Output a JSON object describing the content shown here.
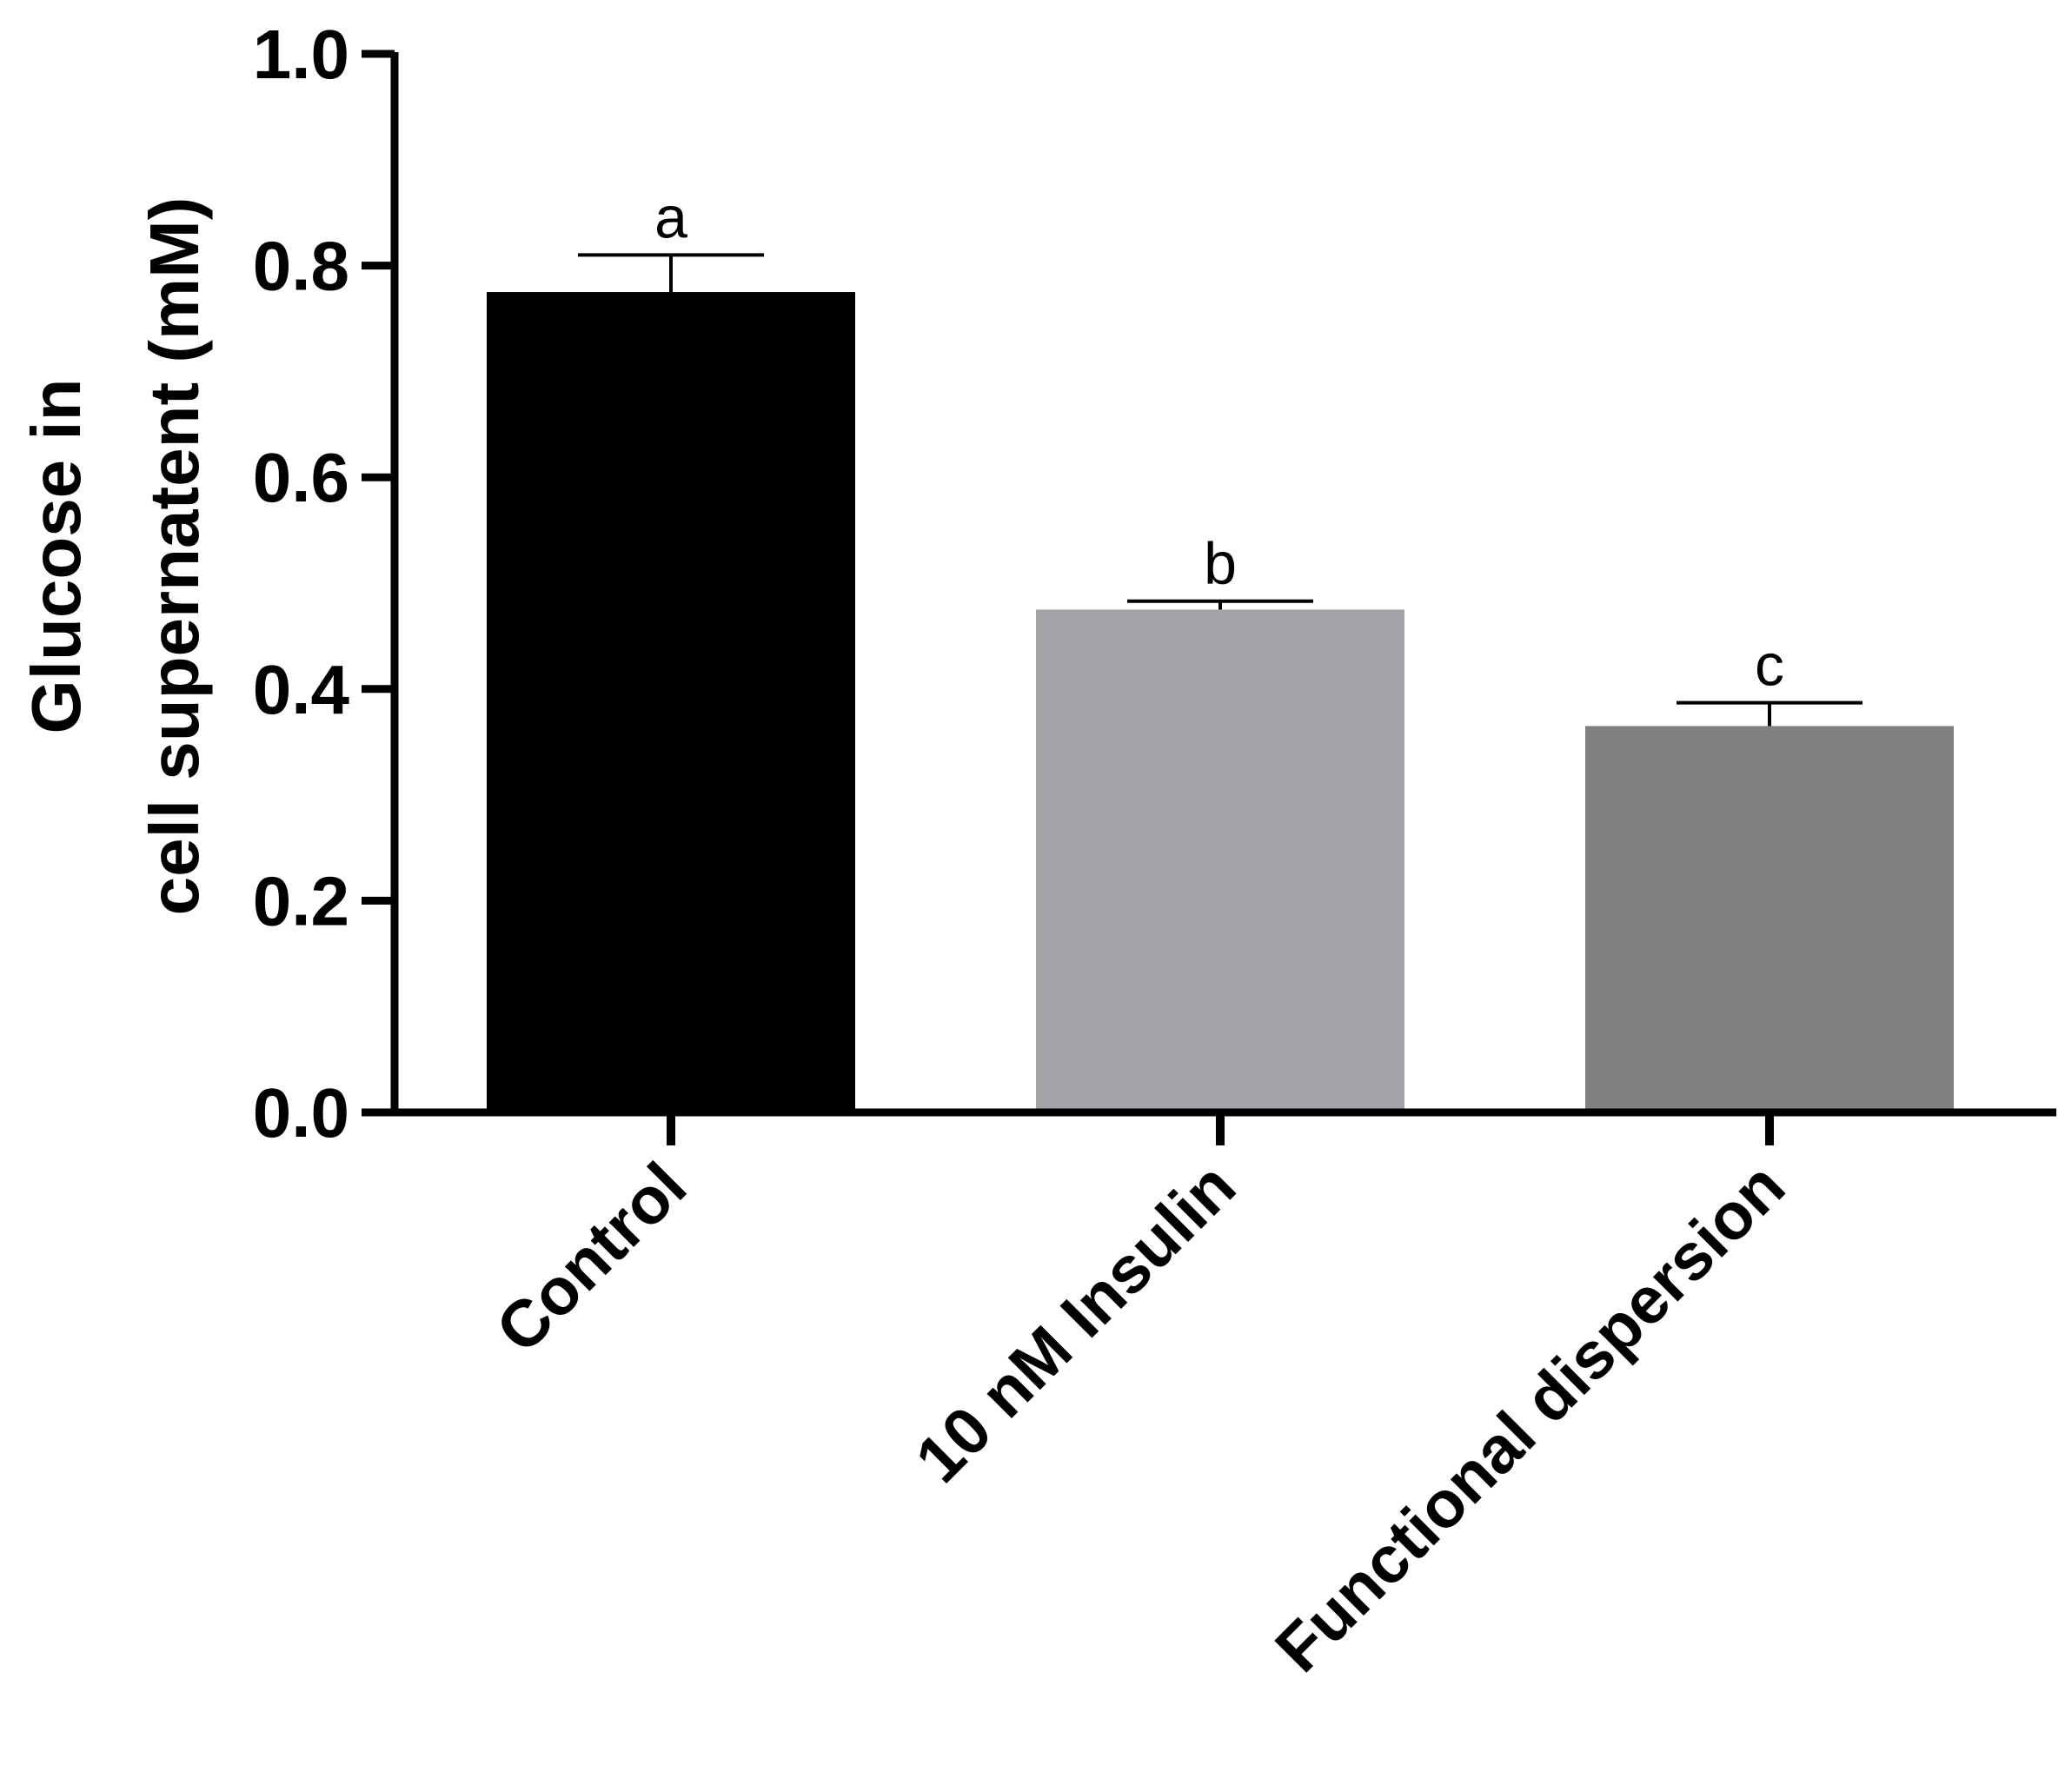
{
  "chart_data": {
    "type": "bar",
    "categories": [
      "Control",
      "10 nM Insulin",
      "Functional dispersion"
    ],
    "values": [
      0.775,
      0.475,
      0.365
    ],
    "errors": [
      0.035,
      0.008,
      0.022
    ],
    "significance_letters": [
      "a",
      "b",
      "c"
    ],
    "colors": [
      "#000000",
      "#a3a3a7",
      "#808080"
    ],
    "ylabel_lines": [
      "Glucose in",
      "cell supernatent (mM)"
    ],
    "ylim": [
      0,
      1.0
    ],
    "yticks": [
      0.0,
      0.2,
      0.4,
      0.6,
      0.8,
      1.0
    ],
    "ytick_labels": [
      "0.0",
      "0.2",
      "0.4",
      "0.6",
      "0.8",
      "1.0"
    ],
    "grid": false,
    "legend": "none"
  }
}
